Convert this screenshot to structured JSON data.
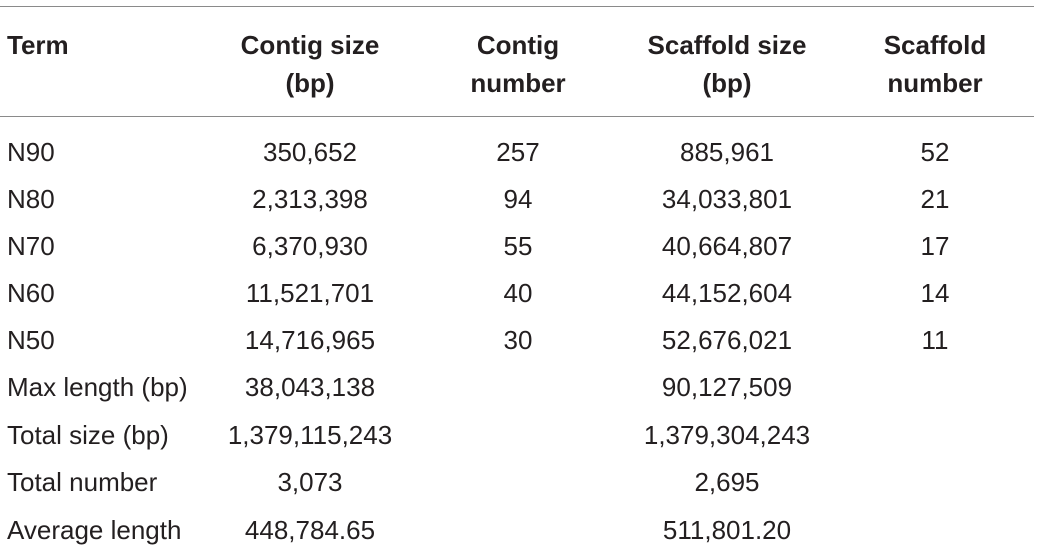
{
  "table": {
    "headers": [
      {
        "line1": "Term",
        "line2": ""
      },
      {
        "line1": "Contig size",
        "line2": "(bp)"
      },
      {
        "line1": "Contig",
        "line2": "number"
      },
      {
        "line1": "Scaffold size",
        "line2": "(bp)"
      },
      {
        "line1": "Scaffold",
        "line2": "number"
      }
    ],
    "rows": [
      [
        "N90",
        "350,652",
        "257",
        "885,961",
        "52"
      ],
      [
        "N80",
        "2,313,398",
        "94",
        "34,033,801",
        "21"
      ],
      [
        "N70",
        "6,370,930",
        "55",
        "40,664,807",
        "17"
      ],
      [
        "N60",
        "11,521,701",
        "40",
        "44,152,604",
        "14"
      ],
      [
        "N50",
        "14,716,965",
        "30",
        "52,676,021",
        "11"
      ],
      [
        "Max length (bp)",
        "38,043,138",
        "",
        "90,127,509",
        ""
      ],
      [
        "Total size (bp)",
        "1,379,115,243",
        "",
        "1,379,304,243",
        ""
      ],
      [
        "Total number",
        "3,073",
        "",
        "2,695",
        ""
      ],
      [
        "Average length",
        "448,784.65",
        "",
        "511,801.20",
        ""
      ]
    ]
  }
}
